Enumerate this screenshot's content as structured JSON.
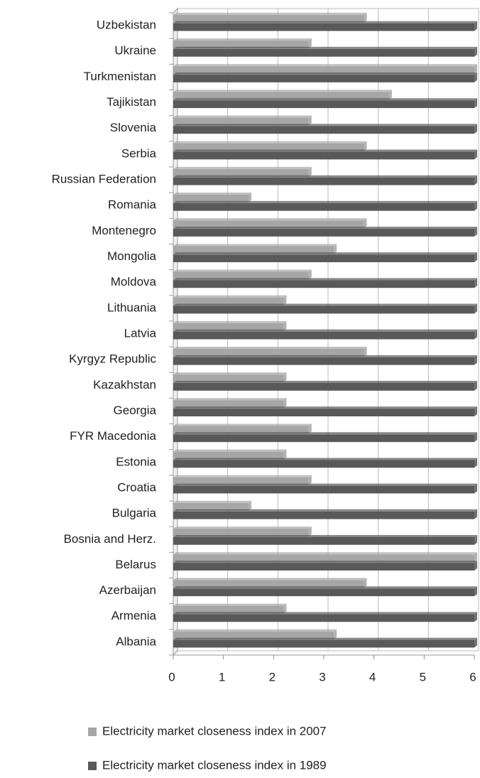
{
  "chart_data": {
    "type": "bar",
    "orientation": "horizontal",
    "categories": [
      "Uzbekistan",
      "Ukraine",
      "Turkmenistan",
      "Tajikistan",
      "Slovenia",
      "Serbia",
      "Russian Federation",
      "Romania",
      "Montenegro",
      "Mongolia",
      "Moldova",
      "Lithuania",
      "Latvia",
      "Kyrgyz Republic",
      "Kazakhstan",
      "Georgia",
      "FYR Macedonia",
      "Estonia",
      "Croatia",
      "Bulgaria",
      "Bosnia and Herz.",
      "Belarus",
      "Azerbaijan",
      "Armenia",
      "Albania"
    ],
    "series": [
      {
        "name": "Electricity market closeness index in 2007",
        "color": "#a6a6a6",
        "values": [
          3.8,
          2.7,
          6,
          4.3,
          2.7,
          3.8,
          2.7,
          1.5,
          3.8,
          3.2,
          2.7,
          2.2,
          2.2,
          3.8,
          2.2,
          2.2,
          2.7,
          2.2,
          2.7,
          1.5,
          2.7,
          6,
          3.8,
          2.2,
          3.2
        ]
      },
      {
        "name": "Electricity market closeness index in 1989",
        "color": "#595959",
        "values": [
          6,
          6,
          6,
          6,
          6,
          6,
          6,
          6,
          6,
          6,
          6,
          6,
          6,
          6,
          6,
          6,
          6,
          6,
          6,
          6,
          6,
          6,
          6,
          6,
          6
        ]
      }
    ],
    "xlim": [
      0,
      6
    ],
    "xticks": [
      0,
      1,
      2,
      3,
      4,
      5,
      6
    ],
    "grid": true
  }
}
